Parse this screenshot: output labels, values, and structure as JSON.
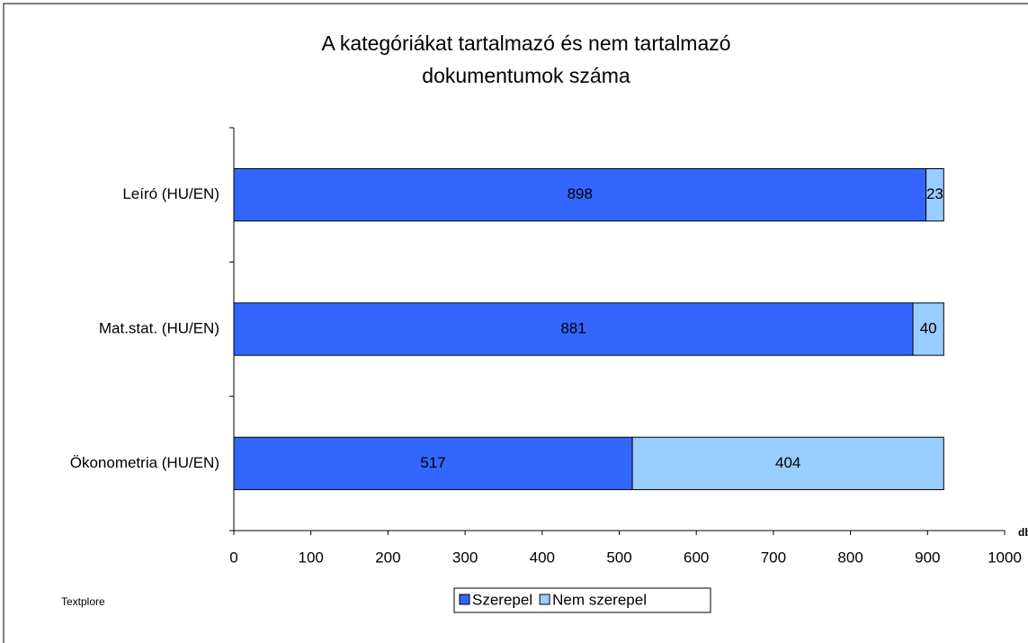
{
  "chart_data": {
    "type": "stacked_barh",
    "title": "A kategóriákat tartalmazó és nem tartalmazó dokumentumok száma",
    "categories": [
      "Leíró (HU/EN)",
      "Mat.stat. (HU/EN)",
      "Ökonometria (HU/EN)"
    ],
    "series": [
      {
        "name": "Szerepel",
        "color": "#3366ff",
        "values": [
          898,
          881,
          517
        ]
      },
      {
        "name": "Nem szerepel",
        "color": "#99ccff",
        "values": [
          23,
          40,
          404
        ]
      }
    ],
    "xlim": [
      0,
      1000
    ],
    "xticks": [
      0,
      100,
      200,
      300,
      400,
      500,
      600,
      700,
      800,
      900,
      1000
    ],
    "x_label": "db",
    "annotation": "Textplore",
    "legend": "bottom"
  }
}
